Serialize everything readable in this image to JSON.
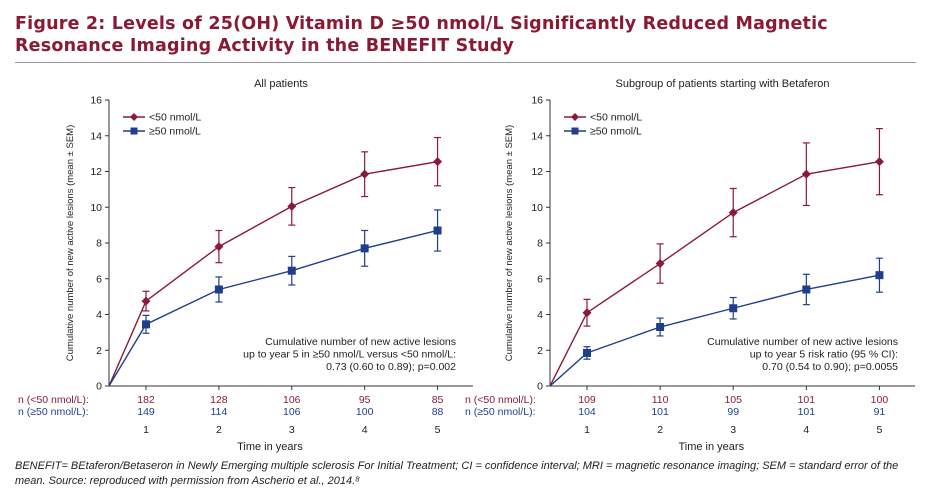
{
  "title": "Figure 2: Levels of 25(OH) Vitamin D ≥50 nmol/L Significantly Reduced Magnetic Resonance Imaging Activity in the BENEFIT Study",
  "caption": "BENEFIT= BEtaferon/Betaseron in Newly Emerging multiple sclerosis For Initial Treatment; CI = confidence interval; MRI = magnetic resonance imaging; SEM = standard error of the mean. Source: reproduced with permission from Ascherio et al., 2014.⁸",
  "colors": {
    "low": "#8b1a38",
    "high": "#1f3f8c",
    "axis": "#333333",
    "title": "#8a1a34"
  },
  "chart_data": [
    {
      "type": "line",
      "title": "All patients",
      "xlabel": "Time in years",
      "ylabel": "Cumulative number of new active lesions (mean ± SEM)",
      "x": [
        0,
        1,
        2,
        3,
        4,
        5
      ],
      "xticks": [
        "1",
        "2",
        "3",
        "4",
        "5"
      ],
      "xlim": [
        0,
        5
      ],
      "ylim": [
        0,
        16
      ],
      "yticks": [
        0,
        2,
        4,
        6,
        8,
        10,
        12,
        14,
        16
      ],
      "grid": false,
      "legend": "top-left",
      "series": [
        {
          "name": "<50 nmol/L",
          "color": "#8b1a38",
          "marker": "diamond",
          "values": [
            0,
            4.75,
            7.8,
            10.05,
            11.85,
            12.55
          ],
          "sem": [
            0,
            0.55,
            0.9,
            1.05,
            1.25,
            1.35
          ]
        },
        {
          "name": "≥50 nmol/L",
          "color": "#1f3f8c",
          "marker": "square",
          "values": [
            0,
            3.45,
            5.4,
            6.45,
            7.7,
            8.7
          ],
          "sem": [
            0,
            0.5,
            0.7,
            0.8,
            1.0,
            1.15
          ]
        }
      ],
      "risk_table": [
        {
          "label": "n (<50 nmol/L):",
          "values": [
            "182",
            "128",
            "106",
            "95",
            "85"
          ]
        },
        {
          "label": "n (≥50 nmol/L):",
          "values": [
            "149",
            "114",
            "106",
            "100",
            "88"
          ]
        }
      ],
      "annotation": [
        "Cumulative number of new active lesions",
        "up to year 5 in ≥50 nmol/L versus <50 nmol/L:",
        "0.73 (0.60 to 0.89); p=0.002"
      ]
    },
    {
      "type": "line",
      "title": "Subgroup of patients starting with Betaferon",
      "xlabel": "Time in years",
      "ylabel": "Cumulative number of new active lesions (mean ± SEM)",
      "x": [
        0,
        1,
        2,
        3,
        4,
        5
      ],
      "xticks": [
        "1",
        "2",
        "3",
        "4",
        "5"
      ],
      "xlim": [
        0,
        5
      ],
      "ylim": [
        0,
        16
      ],
      "yticks": [
        0,
        2,
        4,
        6,
        8,
        10,
        12,
        14,
        16
      ],
      "grid": false,
      "legend": "top-left",
      "series": [
        {
          "name": "<50 nmol/L",
          "color": "#8b1a38",
          "marker": "diamond",
          "values": [
            0,
            4.1,
            6.85,
            9.7,
            11.85,
            12.55
          ],
          "sem": [
            0,
            0.75,
            1.1,
            1.35,
            1.75,
            1.85
          ]
        },
        {
          "name": "≥50 nmol/L",
          "color": "#1f3f8c",
          "marker": "square",
          "values": [
            0,
            1.85,
            3.3,
            4.35,
            5.4,
            6.2
          ],
          "sem": [
            0,
            0.35,
            0.5,
            0.6,
            0.85,
            0.95
          ]
        }
      ],
      "risk_table": [
        {
          "label": "n (<50 nmol/L):",
          "values": [
            "109",
            "110",
            "105",
            "101",
            "100"
          ]
        },
        {
          "label": "n (≥50 nmol/L):",
          "values": [
            "104",
            "101",
            "99",
            "101",
            "91"
          ]
        }
      ],
      "annotation": [
        "Cumulative number of new active lesions",
        "up to year 5 risk ratio (95 % CI):",
        "0.70 (0.54 to 0.90); p=0.0055"
      ]
    }
  ]
}
